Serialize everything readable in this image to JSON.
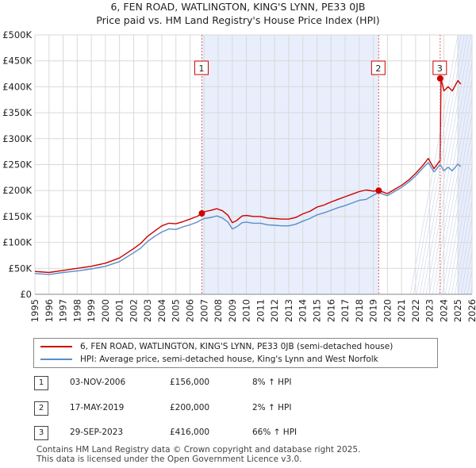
{
  "title_line1": "6, FEN ROAD, WATLINGTON, KING'S LYNN, PE33 0JB",
  "title_line2": "Price paid vs. HM Land Registry's House Price Index (HPI)",
  "chart_data": {
    "type": "line",
    "x_range": [
      1995,
      2026
    ],
    "ylim": [
      0,
      500000
    ],
    "y_ticks": [
      0,
      50000,
      100000,
      150000,
      200000,
      250000,
      300000,
      350000,
      400000,
      450000,
      500000
    ],
    "y_tick_labels": [
      "£0",
      "£50K",
      "£100K",
      "£150K",
      "£200K",
      "£250K",
      "£300K",
      "£350K",
      "£400K",
      "£450K",
      "£500K"
    ],
    "x_ticks": [
      1995,
      1996,
      1997,
      1998,
      1999,
      2000,
      2001,
      2002,
      2003,
      2004,
      2005,
      2006,
      2007,
      2008,
      2009,
      2010,
      2011,
      2012,
      2013,
      2014,
      2015,
      2016,
      2017,
      2018,
      2019,
      2020,
      2021,
      2022,
      2023,
      2024,
      2025,
      2026
    ],
    "x_tick_labels": [
      "1995",
      "1996",
      "1997",
      "1998",
      "1999",
      "2000",
      "2001",
      "2002",
      "2003",
      "2004",
      "2005",
      "2006",
      "2007",
      "2008",
      "2009",
      "2010",
      "2011",
      "2012",
      "2013",
      "2014",
      "2015",
      "2016",
      "2017",
      "2018",
      "2019",
      "2020",
      "2021",
      "2022",
      "2023",
      "2024",
      "2025",
      "2026"
    ],
    "grid": true,
    "shaded_spans": [
      [
        2006.84,
        2019.38
      ],
      [
        2025.0,
        2026.0
      ]
    ],
    "series": [
      {
        "name": "6, FEN ROAD, WATLINGTON, KING'S LYNN, PE33 0JB (semi-detached house)",
        "color": "#cc0000",
        "x": [
          1995.0,
          1996.0,
          1997.0,
          1998.0,
          1999.0,
          2000.0,
          2001.0,
          2002.0,
          2002.5,
          2003.0,
          2003.5,
          2004.0,
          2004.5,
          2005.0,
          2005.5,
          2006.0,
          2006.5,
          2006.84,
          2007.0,
          2007.5,
          2007.9,
          2008.3,
          2008.7,
          2009.0,
          2009.3,
          2009.7,
          2010.0,
          2010.5,
          2011.0,
          2011.5,
          2012.0,
          2012.5,
          2013.0,
          2013.5,
          2014.0,
          2014.5,
          2015.0,
          2015.5,
          2016.0,
          2016.5,
          2017.0,
          2017.5,
          2018.0,
          2018.5,
          2019.0,
          2019.38,
          2019.7,
          2020.0,
          2020.5,
          2021.0,
          2021.5,
          2022.0,
          2022.5,
          2022.9,
          2023.3,
          2023.74,
          2023.8,
          2024.0,
          2024.3,
          2024.6,
          2025.0,
          2025.2
        ],
        "values": [
          44000,
          42000,
          46000,
          50000,
          54000,
          60000,
          70000,
          88000,
          98000,
          112000,
          122000,
          132000,
          137000,
          136000,
          140000,
          145000,
          150000,
          156000,
          159000,
          162000,
          165000,
          161000,
          152000,
          138000,
          142000,
          151000,
          152000,
          150000,
          150000,
          147000,
          146000,
          145000,
          145000,
          148000,
          155000,
          160000,
          168000,
          172000,
          178000,
          183000,
          188000,
          193000,
          198000,
          201000,
          199000,
          200000,
          197000,
          194000,
          202000,
          210000,
          220000,
          233000,
          248000,
          262000,
          242000,
          258000,
          416000,
          392000,
          400000,
          392000,
          412000,
          405000
        ]
      },
      {
        "name": "HPI: Average price, semi-detached house, King's Lynn and West Norfolk",
        "color": "#5b8ec9",
        "x": [
          1995.0,
          1996.0,
          1997.0,
          1998.0,
          1999.0,
          2000.0,
          2001.0,
          2002.0,
          2002.5,
          2003.0,
          2003.5,
          2004.0,
          2004.5,
          2005.0,
          2005.5,
          2006.0,
          2006.5,
          2006.84,
          2007.0,
          2007.5,
          2007.9,
          2008.3,
          2008.7,
          2009.0,
          2009.3,
          2009.7,
          2010.0,
          2010.5,
          2011.0,
          2011.5,
          2012.0,
          2012.5,
          2013.0,
          2013.5,
          2014.0,
          2014.5,
          2015.0,
          2015.5,
          2016.0,
          2016.5,
          2017.0,
          2017.5,
          2018.0,
          2018.5,
          2019.0,
          2019.38,
          2019.7,
          2020.0,
          2020.5,
          2021.0,
          2021.5,
          2022.0,
          2022.5,
          2022.9,
          2023.3,
          2023.74,
          2024.0,
          2024.3,
          2024.6,
          2025.0,
          2025.2
        ],
        "values": [
          40000,
          38000,
          42000,
          45000,
          49000,
          54000,
          63000,
          80000,
          89000,
          102000,
          112000,
          120000,
          126000,
          125000,
          130000,
          134000,
          139000,
          144000,
          146000,
          148000,
          151000,
          147000,
          139000,
          126000,
          130000,
          138000,
          139000,
          137000,
          137000,
          134000,
          133000,
          132000,
          132000,
          135000,
          141000,
          146000,
          153000,
          157000,
          162000,
          167000,
          171000,
          176000,
          181000,
          183000,
          191000,
          196000,
          193000,
          190000,
          198000,
          206000,
          216000,
          228000,
          243000,
          254000,
          236000,
          250000,
          238000,
          245000,
          238000,
          251000,
          246000
        ]
      }
    ],
    "sale_points": [
      {
        "label": "1",
        "x": 2006.84,
        "y": 156000
      },
      {
        "label": "2",
        "x": 2019.38,
        "y": 200000
      },
      {
        "label": "3",
        "x": 2023.74,
        "y": 416000
      }
    ]
  },
  "legend": {
    "property_label": "6, FEN ROAD, WATLINGTON, KING'S LYNN, PE33 0JB (semi-detached house)",
    "hpi_label": "HPI: Average price, semi-detached house, King's Lynn and West Norfolk"
  },
  "sales": [
    {
      "num": "1",
      "date": "03-NOV-2006",
      "price": "£156,000",
      "hpi": "8% ↑ HPI"
    },
    {
      "num": "2",
      "date": "17-MAY-2019",
      "price": "£200,000",
      "hpi": "2% ↑ HPI"
    },
    {
      "num": "3",
      "date": "29-SEP-2023",
      "price": "£416,000",
      "hpi": "66% ↑ HPI"
    }
  ],
  "footer_line1": "Contains HM Land Registry data © Crown copyright and database right 2025.",
  "footer_line2": "This data is licensed under the Open Government Licence v3.0."
}
